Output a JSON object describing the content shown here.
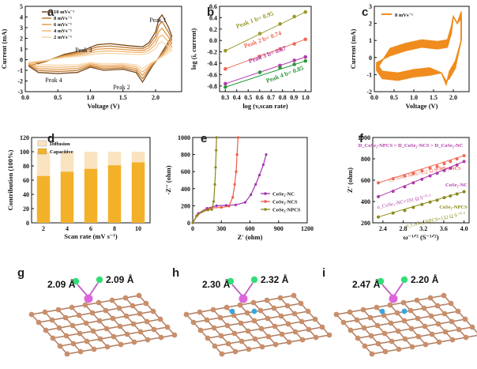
{
  "panels": {
    "a": "a",
    "b": "b",
    "c": "c",
    "d": "d",
    "e": "e",
    "f": "f",
    "g": "g",
    "h": "h",
    "i": "i"
  },
  "chart_data": [
    {
      "id": "a",
      "type": "line",
      "xlabel": "Voltage (V)",
      "ylabel": "Current (mA)",
      "xlim": [
        0.0,
        2.4
      ],
      "ylim": [
        -3,
        5
      ],
      "xticks": [
        "0.0",
        "0.5",
        "1.0",
        "1.5",
        "2.0"
      ],
      "yticks": [
        "-3",
        "-2",
        "-1",
        "0",
        "1",
        "2",
        "3",
        "4",
        "5"
      ],
      "legend": [
        "10 mVs⁻¹",
        "8 mVs⁻¹",
        "6 mVs⁻¹",
        "4 mVs⁻¹",
        "2 mVs⁻¹"
      ],
      "colors": [
        "#7a4a1c",
        "#c07a30",
        "#e39a4c",
        "#f0b877",
        "#f7d6a8"
      ],
      "scale": [
        1.0,
        0.85,
        0.7,
        0.55,
        0.4
      ],
      "annotations": [
        "Peak 1",
        "Peak 2",
        "Peak 3",
        "Peak 4"
      ]
    },
    {
      "id": "b",
      "type": "scatter",
      "xlabel": "log (v,scan rate)",
      "ylabel": "log (i, current)",
      "xlim": [
        0.25,
        1.05
      ],
      "ylim": [
        -0.9,
        0.6
      ],
      "xticks": [
        "0.3",
        "0.4",
        "0.5",
        "0.6",
        "0.7",
        "0.8",
        "0.9",
        "1.0"
      ],
      "yticks": [
        "-0.8",
        "-0.6",
        "-0.4",
        "-0.2",
        "0.0",
        "0.2",
        "0.4",
        "0.6"
      ],
      "x": [
        0.301,
        0.602,
        0.778,
        0.903,
        1.0
      ],
      "series": [
        {
          "name": "Peak 1 b= 0.95",
          "color": "#9a9a2a",
          "values": [
            -0.18,
            0.12,
            0.29,
            0.42,
            0.5
          ]
        },
        {
          "name": "Peak 2 b= 0.74",
          "color": "#ef6a55",
          "values": [
            -0.5,
            -0.28,
            -0.15,
            -0.06,
            0.02
          ]
        },
        {
          "name": "Peak 3 b= 0.67",
          "color": "#b23aa8",
          "values": [
            -0.76,
            -0.56,
            -0.44,
            -0.35,
            -0.29
          ]
        },
        {
          "name": "Peak 4 b= 0.85",
          "color": "#2a9a3a",
          "values": [
            -0.82,
            -0.56,
            -0.48,
            -0.42,
            -0.36
          ]
        }
      ]
    },
    {
      "id": "c",
      "type": "line",
      "xlabel": "Voltage (V)",
      "ylabel": "Current (mA)",
      "xlim": [
        0.0,
        2.4
      ],
      "ylim": [
        -2,
        3
      ],
      "xticks": [
        "0.0",
        "0.5",
        "1.0",
        "1.5",
        "2.0"
      ],
      "yticks": [
        "-2",
        "-1",
        "0",
        "1",
        "2",
        "3"
      ],
      "legend": [
        "8 mVs⁻¹"
      ],
      "color": "#f08c1e"
    },
    {
      "id": "d",
      "type": "bar",
      "xlabel": "Scan rate (mV s⁻¹)",
      "ylabel": "Contribution (100%)",
      "categories": [
        "2",
        "4",
        "6",
        "8",
        "10"
      ],
      "ylim": [
        0,
        120
      ],
      "yticks": [
        "0",
        "20",
        "40",
        "60",
        "80",
        "100",
        "120"
      ],
      "series": [
        {
          "name": "Capacitive",
          "color": "#f3b12a",
          "values": [
            66,
            72,
            76,
            81,
            85
          ]
        },
        {
          "name": "Diffusion",
          "color": "#fae3bf",
          "values": [
            34,
            28,
            24,
            19,
            15
          ]
        }
      ],
      "legend": [
        "Diffusion",
        "Capacitive"
      ]
    },
    {
      "id": "e",
      "type": "line",
      "xlabel": "Z' (ohm)",
      "ylabel": "-Z'' (ohm)",
      "xlim": [
        0,
        1200
      ],
      "ylim": [
        0,
        1000
      ],
      "xticks": [
        "0",
        "300",
        "600",
        "900",
        "1200"
      ],
      "yticks": [
        "0",
        "200",
        "400",
        "600",
        "800",
        "1000"
      ],
      "legend": [
        "CoSe₂-NC",
        "CoSe₂-NCS",
        "CoSe₂-NPCS"
      ],
      "series": [
        {
          "name": "CoSe₂-NC",
          "color": "#a035b0",
          "x": [
            0,
            60,
            150,
            250,
            350,
            450,
            550,
            610,
            660,
            700,
            740,
            770
          ],
          "values": [
            0,
            110,
            170,
            200,
            205,
            210,
            240,
            330,
            450,
            560,
            680,
            800
          ]
        },
        {
          "name": "CoSe₂-NCS",
          "color": "#ef5a45",
          "x": [
            0,
            50,
            120,
            200,
            300,
            380,
            420,
            440,
            455,
            465,
            475
          ],
          "values": [
            0,
            90,
            145,
            175,
            180,
            195,
            300,
            450,
            600,
            800,
            1000
          ]
        },
        {
          "name": "CoSe₂-NPCS",
          "color": "#8a8a1a",
          "x": [
            0,
            40,
            100,
            160,
            200,
            220,
            232,
            240,
            246,
            250
          ],
          "values": [
            0,
            80,
            130,
            150,
            155,
            250,
            450,
            650,
            850,
            1000
          ]
        }
      ]
    },
    {
      "id": "f",
      "type": "line",
      "xlabel": "ω⁻¹ᐟ² (S⁻¹ᐟ²)",
      "ylabel": "Z' (ohm)",
      "xlim": [
        2.2,
        4.1
      ],
      "ylim": [
        200,
        1000
      ],
      "xticks": [
        "2.4",
        "2.8",
        "3.2",
        "3.6",
        "4.0"
      ],
      "yticks": [
        "200",
        "400",
        "600",
        "800",
        "1000"
      ],
      "title": "D_CoSe₂-NPCS > D_CoSe₂-NCS > D_CoSe₂-NC",
      "x": [
        2.31,
        2.6,
        2.83,
        3.0,
        3.17,
        3.33,
        3.47,
        3.61,
        3.73,
        3.86,
        4.0
      ],
      "series": [
        {
          "name": "CoSe₂-NCS",
          "color": "#ef6a55",
          "annotation": "σ_CoSe₂-NCS=152 Ω S⁻⁰·⁵",
          "values": [
            575,
            614,
            640,
            662,
            686,
            712,
            730,
            755,
            775,
            800,
            830
          ]
        },
        {
          "name": "CoSe₂-NC",
          "color": "#b23aa8",
          "annotation": "σ_CoSe₂-NC=191 Ω S⁻⁰·⁵",
          "values": [
            445,
            495,
            538,
            575,
            608,
            640,
            665,
            690,
            712,
            742,
            775
          ]
        },
        {
          "name": "CoSe₂-NPCS",
          "color": "#8a8a1a",
          "annotation": "σ_CoSe₂-NPCS=132 Ω S⁻⁰·⁵",
          "values": [
            255,
            292,
            316,
            344,
            372,
            394,
            412,
            436,
            452,
            470,
            492
          ]
        }
      ]
    }
  ],
  "structures": [
    {
      "id": "g",
      "labels": [
        "2.09 Å",
        "2.09 Å"
      ]
    },
    {
      "id": "h",
      "labels": [
        "2.30 Å",
        "2.32 Å"
      ]
    },
    {
      "id": "i",
      "labels": [
        "2.47 Å",
        "2.20 Å"
      ]
    }
  ]
}
